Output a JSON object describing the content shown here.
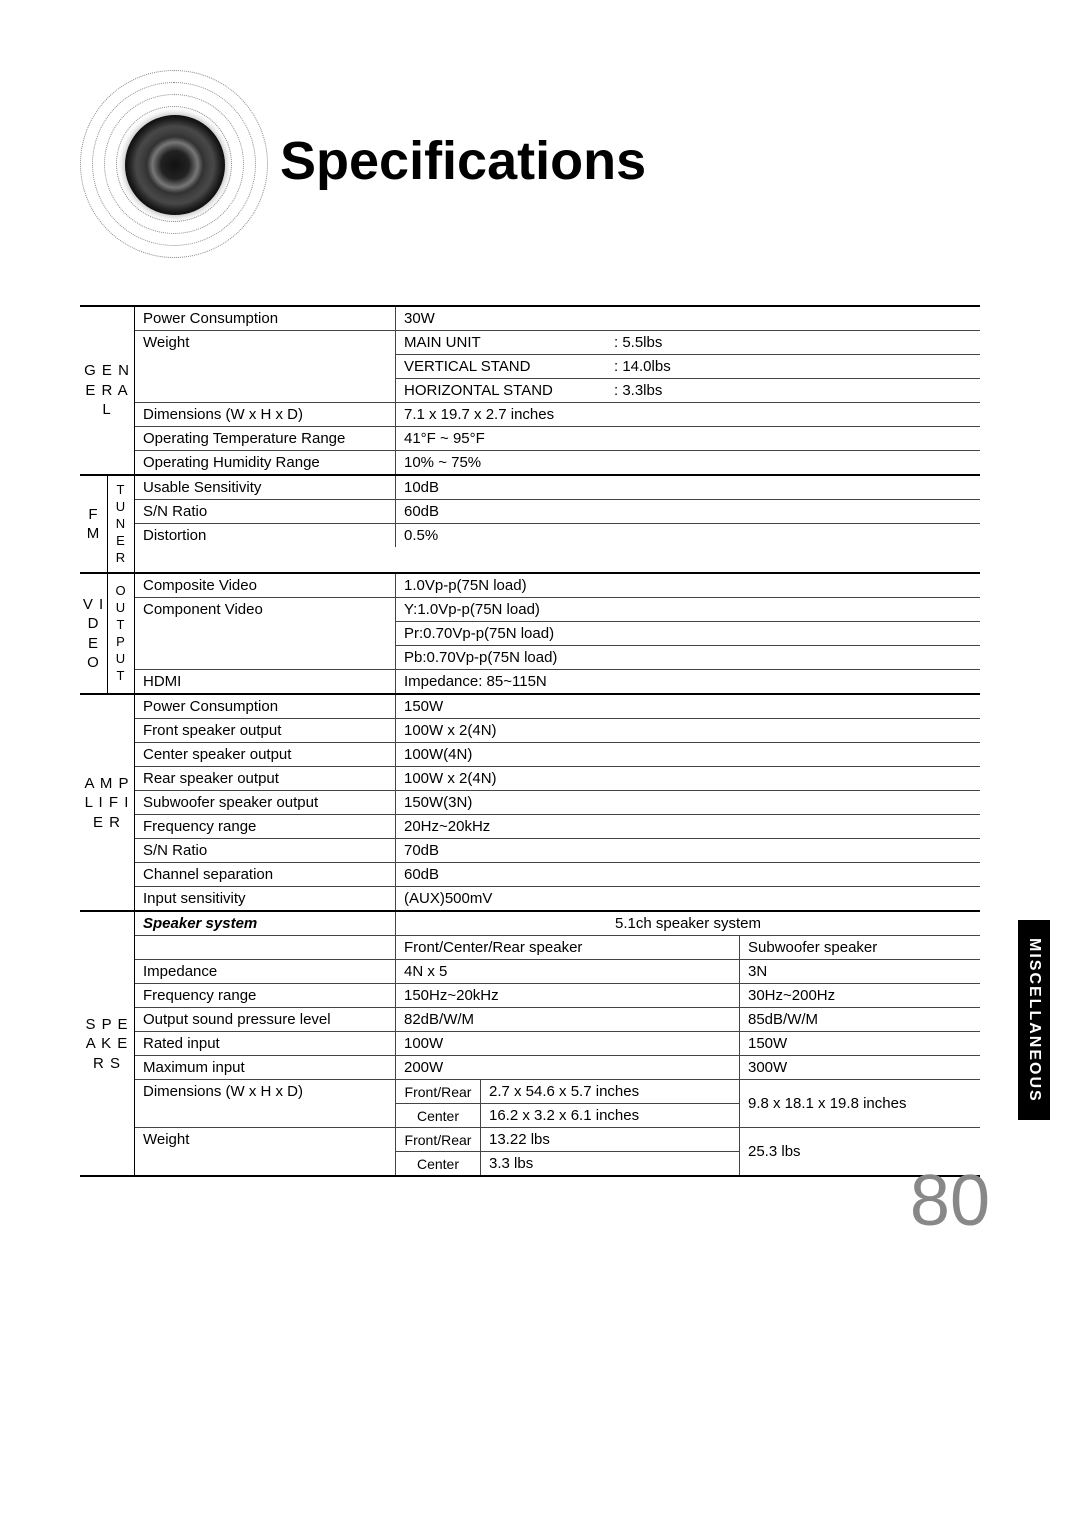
{
  "title": "Specifications",
  "side_label": "MISCELLANEOUS",
  "page_number": "80",
  "colors": {
    "text": "#000000",
    "rule": "#000000",
    "rule_light": "#444444",
    "side_bg": "#000000",
    "side_fg": "#ffffff",
    "page_num": "#888888"
  },
  "sections": {
    "general": {
      "label": "G\nE\nN\nE\nR\nA\nL",
      "rows": [
        {
          "label": "Power Consumption",
          "value": "30W"
        },
        {
          "label": "Weight",
          "stack": [
            {
              "k": "MAIN UNIT",
              "v": ":  5.5lbs"
            },
            {
              "k": "VERTICAL STAND",
              "v": ":  14.0lbs"
            },
            {
              "k": "HORIZONTAL STAND",
              "v": ":  3.3lbs"
            }
          ]
        },
        {
          "label": "Dimensions (W x H x D)",
          "value": "7.1 x 19.7 x 2.7 inches"
        },
        {
          "label": "Operating Temperature Range",
          "value": "41°F ~ 95°F"
        },
        {
          "label": "Operating Humidity Range",
          "value": "10% ~ 75%"
        }
      ]
    },
    "fm": {
      "label1": "F\nM",
      "label2": "T\nU\nN\nE\nR",
      "rows": [
        {
          "label": "Usable Sensitivity",
          "value": "10dB"
        },
        {
          "label": "S/N Ratio",
          "value": "60dB"
        },
        {
          "label": "Distortion",
          "value": "0.5%"
        }
      ]
    },
    "video": {
      "label1": "V\nI\nD\nE\nO",
      "label2": "O\nU\nT\nP\nU\nT",
      "rows": [
        {
          "label": "Composite Video",
          "value": "1.0Vp-p(75N load)"
        },
        {
          "label": "Component Video",
          "stack": [
            "Y:1.0Vp-p(75N load)",
            "Pr:0.70Vp-p(75N load)",
            "Pb:0.70Vp-p(75N load)"
          ]
        },
        {
          "label": "HDMI",
          "value": "Impedance: 85~115N"
        }
      ]
    },
    "amp": {
      "label": "A\nM\nP\nL\nI\nF\nI\nE\nR",
      "rows": [
        {
          "label": "Power Consumption",
          "value": "150W"
        },
        {
          "label": "Front speaker output",
          "value": "100W x 2(4N)"
        },
        {
          "label": "Center speaker output",
          "value": "100W(4N)"
        },
        {
          "label": "Rear speaker output",
          "value": "100W x 2(4N)"
        },
        {
          "label": "Subwoofer speaker output",
          "value": "150W(3N)"
        },
        {
          "label": "Frequency range",
          "value": "20Hz~20kHz"
        },
        {
          "label": "S/N Ratio",
          "value": "70dB"
        },
        {
          "label": "Channel separation",
          "value": "60dB"
        },
        {
          "label": "Input sensitivity",
          "value": "(AUX)500mV"
        }
      ]
    },
    "speakers": {
      "label": "S\nP\nE\nA\nK\nE\nR\nS",
      "system_label": "Speaker system",
      "system_value": "5.1ch speaker system",
      "header": {
        "left": "Front/Center/Rear speaker",
        "right": "Subwoofer speaker"
      },
      "rows": [
        {
          "label": "Impedance",
          "left": "4N x 5",
          "right": "3N"
        },
        {
          "label": "Frequency range",
          "left": "150Hz~20kHz",
          "right": "30Hz~200Hz"
        },
        {
          "label": "Output sound pressure level",
          "left": "82dB/W/M",
          "right": "85dB/W/M"
        },
        {
          "label": "Rated input",
          "left": "100W",
          "right": "150W"
        },
        {
          "label": "Maximum input",
          "left": "200W",
          "right": "300W"
        }
      ],
      "dim_label": "Dimensions  (W x H x D)",
      "dim_rows": [
        {
          "sub": "Front/Rear",
          "val": "2.7 x 54.6 x 5.7 inches"
        },
        {
          "sub": "Center",
          "val": "16.2 x 3.2 x 6.1 inches"
        }
      ],
      "dim_sub": "9.8 x 18.1 x 19.8 inches",
      "weight_label": "Weight",
      "weight_rows": [
        {
          "sub": "Front/Rear",
          "val": "13.22 lbs"
        },
        {
          "sub": "Center",
          "val": "3.3 lbs"
        }
      ],
      "weight_sub": "25.3 lbs"
    }
  }
}
